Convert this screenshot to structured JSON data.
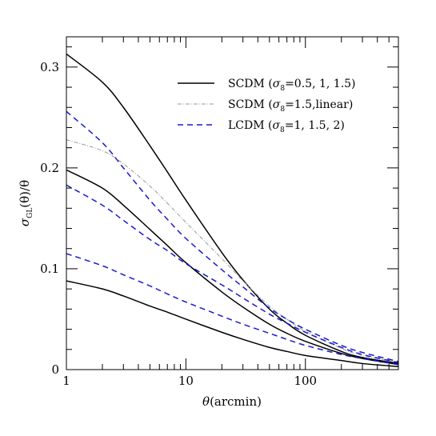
{
  "chart_data": {
    "type": "line",
    "xlabel_symbol": "θ",
    "xlabel_unit": "(arcmin)",
    "ylabel_main": "σ",
    "ylabel_sub": "GL",
    "ylabel_rest": "(θ)/θ",
    "xscale": "log",
    "xlim": [
      1,
      600
    ],
    "ylim": [
      0,
      0.33
    ],
    "grid": false,
    "legend_position": "top-right",
    "x_ticks": [
      {
        "value": 1,
        "label": "1"
      },
      {
        "value": 10,
        "label": "10"
      },
      {
        "value": 100,
        "label": "100"
      }
    ],
    "y_ticks": [
      {
        "value": 0,
        "label": "0"
      },
      {
        "value": 0.1,
        "label": "0.1"
      },
      {
        "value": 0.2,
        "label": "0.2"
      },
      {
        "value": 0.3,
        "label": "0.3"
      }
    ],
    "legend": [
      {
        "group": "scdm",
        "main": "SCDM",
        "sigma": "σ",
        "sub": "8",
        "rest": "=0.5,  1,  1.5)"
      },
      {
        "group": "linear",
        "main": "SCDM",
        "sigma": "σ",
        "sub": "8",
        "rest": "=1.5,linear)"
      },
      {
        "group": "lcdm",
        "main": "LCDM",
        "sigma": "σ",
        "sub": "8",
        "rest": "=1,  1.5,  2)"
      }
    ],
    "styles": {
      "scdm": {
        "color": "#000000",
        "dash": ""
      },
      "linear": {
        "color": "#999999",
        "dash": "5,2,1,2"
      },
      "lcdm": {
        "color": "#1a1acc",
        "dash": "7,5"
      }
    },
    "series": [
      {
        "group": "scdm",
        "sigma8": 1.5,
        "x": [
          1,
          2,
          3,
          5,
          7,
          10,
          20,
          30,
          50,
          70,
          100,
          200,
          300,
          600
        ],
        "y": [
          0.313,
          0.285,
          0.26,
          0.222,
          0.196,
          0.168,
          0.116,
          0.089,
          0.06,
          0.046,
          0.034,
          0.018,
          0.012,
          0.006
        ]
      },
      {
        "group": "scdm",
        "sigma8": 1,
        "x": [
          1,
          2,
          3,
          5,
          7,
          10,
          20,
          30,
          50,
          70,
          100,
          200,
          300,
          600
        ],
        "y": [
          0.198,
          0.18,
          0.163,
          0.139,
          0.123,
          0.106,
          0.077,
          0.062,
          0.045,
          0.036,
          0.028,
          0.016,
          0.011,
          0.005
        ]
      },
      {
        "group": "scdm",
        "sigma8": 0.5,
        "x": [
          1,
          2,
          3,
          5,
          7,
          10,
          20,
          30,
          50,
          70,
          100,
          200,
          300,
          600
        ],
        "y": [
          0.088,
          0.08,
          0.073,
          0.063,
          0.057,
          0.05,
          0.037,
          0.03,
          0.022,
          0.018,
          0.014,
          0.009,
          0.006,
          0.003
        ]
      },
      {
        "group": "linear",
        "sigma8": 1.5,
        "x": [
          1,
          2,
          3,
          5,
          7,
          10,
          20,
          30,
          50,
          70,
          100,
          200,
          300,
          600
        ],
        "y": [
          0.228,
          0.217,
          0.204,
          0.182,
          0.165,
          0.146,
          0.11,
          0.088,
          0.063,
          0.05,
          0.038,
          0.021,
          0.014,
          0.007
        ]
      },
      {
        "group": "lcdm",
        "sigma8": 2,
        "x": [
          1,
          2,
          3,
          5,
          7,
          10,
          20,
          30,
          50,
          70,
          100,
          200,
          300,
          600
        ],
        "y": [
          0.256,
          0.225,
          0.2,
          0.168,
          0.149,
          0.13,
          0.099,
          0.082,
          0.061,
          0.05,
          0.04,
          0.024,
          0.017,
          0.008
        ]
      },
      {
        "group": "lcdm",
        "sigma8": 1.5,
        "x": [
          1,
          2,
          3,
          5,
          7,
          10,
          20,
          30,
          50,
          70,
          100,
          200,
          300,
          600
        ],
        "y": [
          0.183,
          0.163,
          0.148,
          0.129,
          0.118,
          0.105,
          0.084,
          0.071,
          0.055,
          0.046,
          0.037,
          0.022,
          0.015,
          0.007
        ]
      },
      {
        "group": "lcdm",
        "sigma8": 1,
        "x": [
          1,
          2,
          3,
          5,
          7,
          10,
          20,
          30,
          50,
          70,
          100,
          200,
          300,
          600
        ],
        "y": [
          0.115,
          0.103,
          0.094,
          0.083,
          0.075,
          0.067,
          0.053,
          0.045,
          0.036,
          0.03,
          0.024,
          0.015,
          0.011,
          0.005
        ]
      }
    ]
  }
}
